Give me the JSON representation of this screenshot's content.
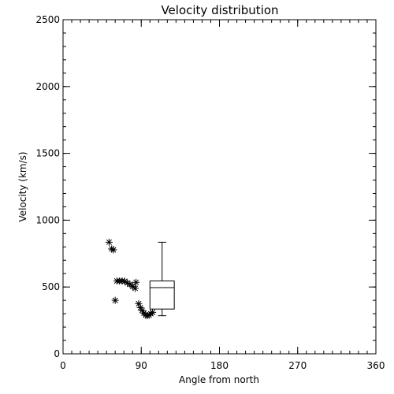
{
  "chart_data": {
    "type": "scatter",
    "title": "Velocity distribution",
    "xlabel": "Angle from north",
    "ylabel": "Velocity (km/s)",
    "xlim": [
      0,
      360
    ],
    "ylim": [
      0,
      2500
    ],
    "x_ticks": [
      0,
      90,
      180,
      270,
      360
    ],
    "y_ticks": [
      0,
      500,
      1000,
      1500,
      2000,
      2500
    ],
    "x_minor_step": 10,
    "y_minor_step": 100,
    "grid": false,
    "legend": "none",
    "marker": "asterisk",
    "points": [
      {
        "x": 53,
        "y": 835
      },
      {
        "x": 56,
        "y": 785
      },
      {
        "x": 58,
        "y": 778
      },
      {
        "x": 60,
        "y": 400
      },
      {
        "x": 62,
        "y": 545
      },
      {
        "x": 65,
        "y": 545
      },
      {
        "x": 68,
        "y": 545
      },
      {
        "x": 71,
        "y": 543
      },
      {
        "x": 74,
        "y": 530
      },
      {
        "x": 77,
        "y": 520
      },
      {
        "x": 80,
        "y": 505
      },
      {
        "x": 83,
        "y": 490
      },
      {
        "x": 84,
        "y": 535
      },
      {
        "x": 87,
        "y": 375
      },
      {
        "x": 89,
        "y": 345
      },
      {
        "x": 91,
        "y": 325
      },
      {
        "x": 93,
        "y": 305
      },
      {
        "x": 95,
        "y": 290
      },
      {
        "x": 97,
        "y": 285
      },
      {
        "x": 99,
        "y": 290
      },
      {
        "x": 101,
        "y": 300
      },
      {
        "x": 103,
        "y": 310
      }
    ],
    "boxplot": {
      "x_left": 100,
      "x_right": 128,
      "min": 285,
      "q1": 335,
      "median": 495,
      "q3": 545,
      "max": 835
    }
  }
}
